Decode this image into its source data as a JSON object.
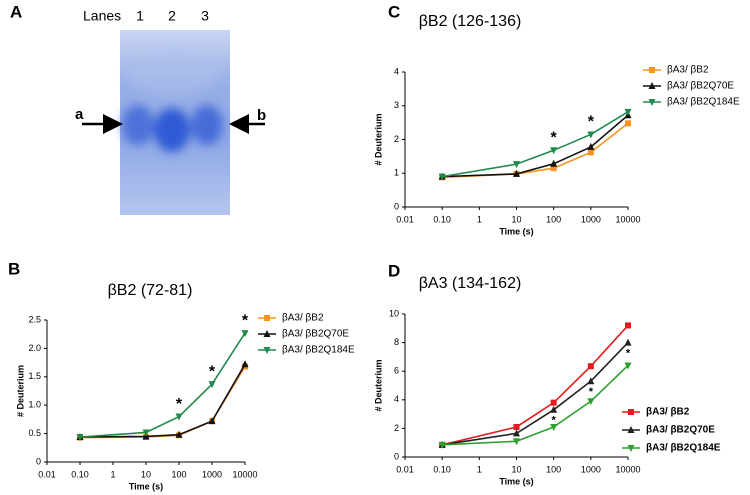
{
  "gel": {
    "panel_label": "A",
    "lanes_title": "Lanes",
    "lanes": [
      "1",
      "2",
      "3"
    ],
    "markers": [
      "a",
      "b"
    ]
  },
  "chart_data": [
    {
      "type": "line",
      "panel_label": "B",
      "title": "βB2 (72-81)",
      "x_label": "Time (s)",
      "y_label": "# Deuterium",
      "x": [
        0.1,
        10,
        100,
        1000,
        10000
      ],
      "x_scale": "log",
      "xlim": [
        0.01,
        10000
      ],
      "xticks": [
        {
          "value": 0.01,
          "label": "0.01"
        },
        {
          "value": 0.1,
          "label": "0.10"
        },
        1,
        10,
        100,
        1000,
        10000
      ],
      "ylim": [
        0,
        2.5
      ],
      "yticks": [
        0,
        0.5,
        {
          "value": 1,
          "label": "1.0"
        },
        1.5,
        {
          "value": 2,
          "label": "2.0"
        },
        2.5
      ],
      "legend": "right",
      "significance_label": "*",
      "significant_x": [
        100,
        1000,
        10000
      ],
      "series": [
        {
          "name": "βA3/ βB2",
          "color": "#f7931e",
          "marker": "square",
          "values": [
            0.43,
            0.44,
            0.47,
            0.72,
            1.68
          ]
        },
        {
          "name": "βA3/ βB2Q70E",
          "color": "#111111",
          "marker": "triangle-up",
          "values": [
            0.44,
            0.45,
            0.48,
            0.72,
            1.72
          ]
        },
        {
          "name": "βA3/ βB2Q184E",
          "color": "#1e8a4c",
          "marker": "triangle-down",
          "values": [
            0.44,
            0.52,
            0.8,
            1.37,
            2.27
          ]
        }
      ]
    },
    {
      "type": "line",
      "panel_label": "C",
      "title": "βB2 (126-136)",
      "x_label": "Time (s)",
      "y_label": "# Deuterium",
      "x": [
        0.1,
        10,
        100,
        1000,
        10000
      ],
      "x_scale": "log",
      "xlim": [
        0.01,
        10000
      ],
      "xticks": [
        {
          "value": 0.01,
          "label": "0.01"
        },
        {
          "value": 0.1,
          "label": "0.10"
        },
        1,
        10,
        100,
        1000,
        10000
      ],
      "ylim": [
        0,
        4
      ],
      "yticks": [
        0,
        1,
        2,
        3,
        4
      ],
      "legend": "right",
      "significance_label": "*",
      "significant_x": [
        100,
        1000
      ],
      "series": [
        {
          "name": "βA3/ βB2",
          "color": "#f7931e",
          "marker": "square",
          "values": [
            0.88,
            0.98,
            1.15,
            1.62,
            2.48
          ]
        },
        {
          "name": "βA3/ βB2Q70E",
          "color": "#111111",
          "marker": "triangle-up",
          "values": [
            0.9,
            0.98,
            1.28,
            1.78,
            2.72
          ]
        },
        {
          "name": "βA3/ βB2Q184E",
          "color": "#1e8a4c",
          "marker": "triangle-down",
          "values": [
            0.9,
            1.27,
            1.68,
            2.15,
            2.82
          ]
        }
      ]
    },
    {
      "type": "line",
      "panel_label": "D",
      "title": "βA3 (134-162)",
      "x_label": "Time (s)",
      "y_label": "# Deuterium",
      "x": [
        0.1,
        10,
        100,
        1000,
        10000
      ],
      "x_scale": "log",
      "xlim": [
        0.01,
        10000
      ],
      "xticks": [
        {
          "value": 0.01,
          "label": "0.01"
        },
        {
          "value": 0.1,
          "label": "0.10"
        },
        1,
        10,
        100,
        1000,
        10000
      ],
      "ylim": [
        0,
        10
      ],
      "yticks": [
        0,
        2,
        4,
        6,
        8,
        10
      ],
      "legend": "lower right",
      "significance_label": "*",
      "significant_x": [
        100,
        1000,
        10000
      ],
      "series": [
        {
          "name": "βA3/ βB2",
          "color": "#e41a1c",
          "marker": "square",
          "values": [
            0.85,
            2.1,
            3.8,
            6.35,
            9.2
          ]
        },
        {
          "name": "βA3/ βB2Q70E",
          "color": "#222222",
          "marker": "triangle-up",
          "values": [
            0.85,
            1.65,
            3.3,
            5.3,
            8.0
          ]
        },
        {
          "name": "βA3/ βB2Q184E",
          "color": "#2ca02c",
          "marker": "triangle-down",
          "values": [
            0.85,
            1.1,
            2.1,
            3.9,
            6.4
          ]
        }
      ]
    }
  ]
}
